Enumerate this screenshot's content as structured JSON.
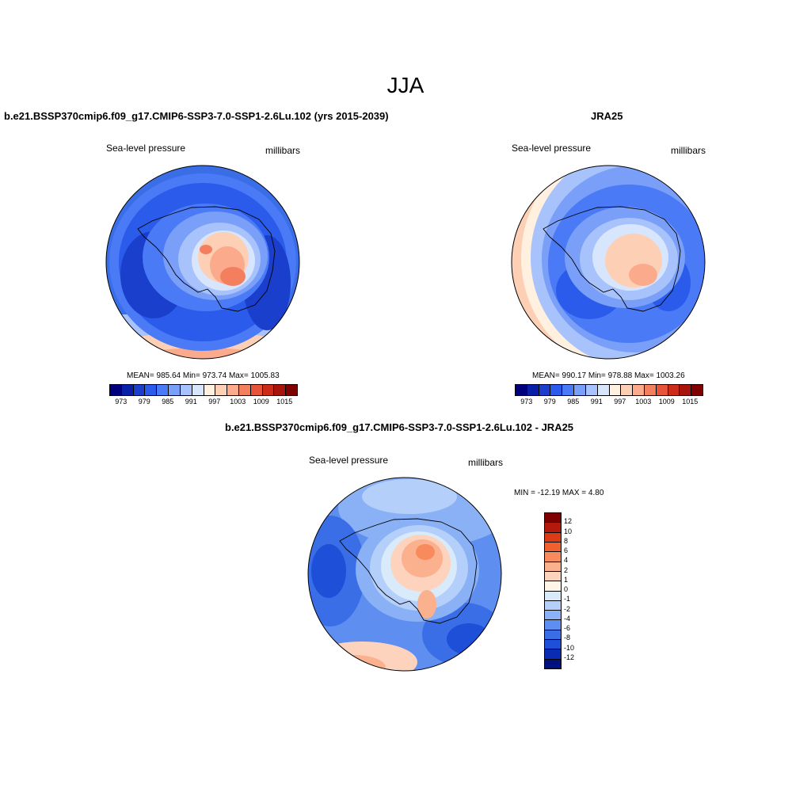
{
  "main_title": "JJA",
  "panels": [
    {
      "title": "b.e21.BSSP370cmip6.f09_g17.CMIP6-SSP3-7.0-SSP1-2.6Lu.102 (yrs 2015-2039)",
      "left_label": "Sea-level pressure",
      "right_label": "millibars",
      "stats": "MEAN= 985.64  Min= 973.74  Max= 1005.83"
    },
    {
      "title": "JRA25",
      "left_label": "Sea-level pressure",
      "right_label": "millibars",
      "stats": "MEAN= 990.17  Min= 978.88  Max= 1003.26"
    },
    {
      "title": "b.e21.BSSP370cmip6.f09_g17.CMIP6-SSP3-7.0-SSP1-2.6Lu.102 - JRA25",
      "left_label": "Sea-level pressure",
      "right_label": "millibars",
      "stats": "MIN = -12.19 MAX =   4.80"
    }
  ],
  "abs_colorbar": {
    "colors": [
      "#00007f",
      "#0a1fa8",
      "#1a3fcc",
      "#2b5bea",
      "#4a7af5",
      "#7a9ff8",
      "#a8c2fb",
      "#d7e6fd",
      "#fff0e0",
      "#fdd0b5",
      "#fbab8c",
      "#f47f5e",
      "#e8543a",
      "#cc2c17",
      "#a8140b",
      "#7f0000"
    ],
    "ticks": [
      "973",
      "979",
      "985",
      "991",
      "997",
      "1003",
      "1009",
      "1015"
    ]
  },
  "diff_colorbar": {
    "colors": [
      "#7f0000",
      "#b31a0c",
      "#dd3a18",
      "#f2602f",
      "#f78b5e",
      "#fbb08e",
      "#fdd3bd",
      "#fff5e8",
      "#d9ebfb",
      "#b3cffa",
      "#8ab0f5",
      "#5e8ef0",
      "#3a6ee6",
      "#1d4fd8",
      "#0a2cb3",
      "#00117f"
    ],
    "ticks": [
      "12",
      "10",
      "8",
      "6",
      "4",
      "2",
      "1",
      "0",
      "-1",
      "-2",
      "-4",
      "-6",
      "-8",
      "-10",
      "-12"
    ]
  }
}
